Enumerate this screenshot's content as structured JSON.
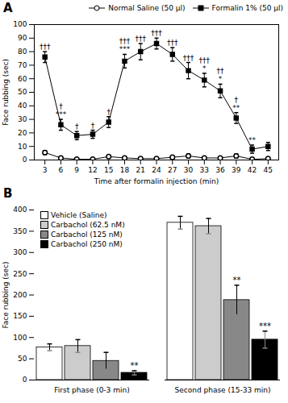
{
  "chart_data": [
    {
      "type": "line",
      "title": "A",
      "xlabel": "Time after formalin injection (min)",
      "ylabel": "Face rubbing (sec)",
      "x": [
        3,
        6,
        9,
        12,
        15,
        18,
        21,
        24,
        27,
        30,
        33,
        36,
        39,
        42,
        45
      ],
      "xlim": [
        1,
        47
      ],
      "xticks": [
        3,
        6,
        9,
        12,
        15,
        18,
        21,
        24,
        27,
        30,
        33,
        36,
        39,
        42,
        45
      ],
      "ylim": [
        0,
        100
      ],
      "yticks": [
        0,
        10,
        20,
        30,
        40,
        50,
        60,
        70,
        80,
        90,
        100
      ],
      "legend": "upper right",
      "series": [
        {
          "name": "Normal Saline (50 μl)",
          "color": "black",
          "marker": "open-circle",
          "values": [
            5.5,
            1.5,
            0.5,
            0.5,
            2.5,
            1.5,
            1.0,
            1.0,
            2.0,
            3.0,
            1.5,
            1.5,
            3.0,
            0.5,
            1.0
          ],
          "errors": [
            1.5,
            0.8,
            0.5,
            0.5,
            1.0,
            0.8,
            0.5,
            0.5,
            1.0,
            1.5,
            0.8,
            0.8,
            1.5,
            0.5,
            0.8
          ]
        },
        {
          "name": "Formalin 1% (50 μl)",
          "color": "black",
          "marker": "square",
          "values": [
            76,
            26,
            18,
            19,
            28,
            73,
            80,
            86,
            78,
            66,
            59,
            51,
            31,
            8,
            10
          ],
          "errors": [
            4,
            4,
            3,
            3,
            4,
            5,
            6,
            4,
            5,
            6,
            5,
            5,
            4,
            3,
            3
          ]
        }
      ],
      "annotations": [
        {
          "series": "Formalin 1% (50 μl)",
          "x": 3,
          "text": "†††"
        },
        {
          "series": "Formalin 1% (50 μl)",
          "x": 6,
          "text": "†"
        },
        {
          "series": "Formalin 1% (50 μl)",
          "x": 6,
          "text": "***"
        },
        {
          "series": "Formalin 1% (50 μl)",
          "x": 9,
          "text": "†"
        },
        {
          "series": "Formalin 1% (50 μl)",
          "x": 12,
          "text": "†"
        },
        {
          "series": "Formalin 1% (50 μl)",
          "x": 15,
          "text": "†"
        },
        {
          "series": "Formalin 1% (50 μl)",
          "x": 18,
          "text": "†††"
        },
        {
          "series": "Formalin 1% (50 μl)",
          "x": 18,
          "text": "***"
        },
        {
          "series": "Formalin 1% (50 μl)",
          "x": 21,
          "text": "†††"
        },
        {
          "series": "Formalin 1% (50 μl)",
          "x": 24,
          "text": "†††"
        },
        {
          "series": "Formalin 1% (50 μl)",
          "x": 27,
          "text": "†††"
        },
        {
          "series": "Formalin 1% (50 μl)",
          "x": 30,
          "text": "†††"
        },
        {
          "series": "Formalin 1% (50 μl)",
          "x": 33,
          "text": "†††"
        },
        {
          "series": "Formalin 1% (50 μl)",
          "x": 33,
          "text": "*"
        },
        {
          "series": "Formalin 1% (50 μl)",
          "x": 36,
          "text": "††"
        },
        {
          "series": "Formalin 1% (50 μl)",
          "x": 36,
          "text": "*"
        },
        {
          "series": "Formalin 1% (50 μl)",
          "x": 39,
          "text": "†"
        },
        {
          "series": "Formalin 1% (50 μl)",
          "x": 39,
          "text": "**"
        },
        {
          "series": "Formalin 1% (50 μl)",
          "x": 42,
          "text": "**"
        }
      ]
    },
    {
      "type": "bar",
      "title": "B",
      "ylabel": "Face rubbing (sec)",
      "categories": [
        "First phase (0-3 min)",
        "Second phase (15-33 min)"
      ],
      "ylim": [
        0,
        400
      ],
      "yticks": [
        0,
        50,
        100,
        150,
        200,
        250,
        300,
        350,
        400
      ],
      "legend": "upper left",
      "series": [
        {
          "name": "Vehicle (Saline)",
          "color": "white",
          "values": [
            77,
            370
          ],
          "errors": [
            8,
            15
          ]
        },
        {
          "name": "Carbachol (62.5 nM)",
          "color": "#cccccc",
          "values": [
            80,
            362
          ],
          "errors": [
            15,
            18
          ]
        },
        {
          "name": "Carbachol (125 nM)",
          "color": "#888888",
          "values": [
            45,
            188
          ],
          "errors": [
            20,
            35
          ]
        },
        {
          "name": "Carbachol (250 nM)",
          "color": "black",
          "values": [
            17,
            95
          ],
          "errors": [
            5,
            20
          ]
        }
      ],
      "annotations": [
        {
          "series": "Carbachol (250 nM)",
          "category": "First phase (0-3 min)",
          "text": "**"
        },
        {
          "series": "Carbachol (125 nM)",
          "category": "Second phase (15-33 min)",
          "text": "**"
        },
        {
          "series": "Carbachol (250 nM)",
          "category": "Second phase (15-33 min)",
          "text": "***"
        }
      ]
    }
  ]
}
